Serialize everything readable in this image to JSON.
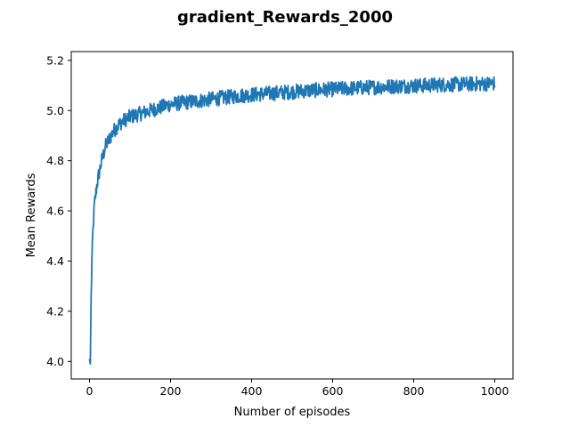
{
  "chart_data": {
    "type": "line",
    "title": "gradient_Rewards_2000",
    "xlabel": "Number of episodes",
    "ylabel": "Mean Rewards",
    "xlim": [
      -45,
      1045
    ],
    "ylim": [
      3.93,
      5.235
    ],
    "xticks": [
      0,
      200,
      400,
      600,
      800,
      1000
    ],
    "xtick_labels": [
      "0",
      "200",
      "400",
      "600",
      "800",
      "1000"
    ],
    "yticks": [
      4.0,
      4.2,
      4.4,
      4.6,
      4.8,
      5.0,
      5.2
    ],
    "ytick_labels": [
      "4.0",
      "4.2",
      "4.4",
      "4.6",
      "4.8",
      "5.0",
      "5.2"
    ],
    "grid": false,
    "legend": "none",
    "series": [
      {
        "color": "#1f77b4",
        "x": [
          0,
          2,
          4,
          6,
          8,
          10,
          12,
          15,
          18,
          20,
          25,
          30,
          35,
          40,
          50,
          60,
          70,
          80,
          90,
          100,
          120,
          140,
          160,
          180,
          200,
          225,
          250,
          275,
          300,
          325,
          350,
          375,
          400,
          425,
          450,
          475,
          500,
          525,
          550,
          575,
          600,
          625,
          650,
          675,
          700,
          725,
          750,
          775,
          800,
          825,
          850,
          875,
          900,
          925,
          950,
          975,
          1000
        ],
        "y": [
          4.01,
          3.99,
          4.25,
          4.4,
          4.5,
          4.56,
          4.62,
          4.66,
          4.7,
          4.72,
          4.76,
          4.8,
          4.83,
          4.86,
          4.89,
          4.92,
          4.94,
          4.955,
          4.965,
          4.975,
          4.985,
          4.995,
          5.005,
          5.015,
          5.025,
          5.03,
          5.035,
          5.04,
          5.045,
          5.05,
          5.055,
          5.06,
          5.063,
          5.066,
          5.069,
          5.072,
          5.075,
          5.078,
          5.081,
          5.083,
          5.085,
          5.087,
          5.089,
          5.091,
          5.093,
          5.095,
          5.097,
          5.098,
          5.099,
          5.1,
          5.102,
          5.103,
          5.104,
          5.105,
          5.106,
          5.107,
          5.108
        ]
      }
    ]
  }
}
